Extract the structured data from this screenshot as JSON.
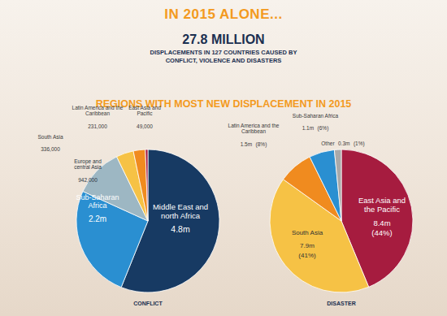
{
  "header": {
    "title": "IN 2015 ALONE...",
    "headline": "27.8 MILLION",
    "subtitle": "DISPLACEMENTS IN 127 COUNTRIES CAUSED BY CONFLICT, VIOLENCE AND DISASTERS",
    "section_title": "REGIONS WITH MOST NEW DISPLACEMENT IN 2015"
  },
  "chart_data": [
    {
      "type": "pie",
      "title": "CONFLICT",
      "categories": [
        "Middle East and north Africa",
        "Sub-Saharan Africa",
        "Europe and central Asia",
        "South Asia",
        "Latin America and the Caribbean",
        "East Asia and Pacific"
      ],
      "values": [
        4800000,
        2200000,
        942000,
        336000,
        231000,
        49000
      ],
      "value_labels": [
        "4.8m",
        "2.2m",
        "942,000",
        "336,000",
        "231,000",
        "49,000"
      ],
      "colors": [
        "#173a63",
        "#2a8fd1",
        "#9db7c3",
        "#f6c245",
        "#f08b1f",
        "#a61c3f"
      ],
      "data_labels": true
    },
    {
      "type": "pie",
      "title": "DISASTER",
      "categories": [
        "East Asia and the Pacific",
        "South Asia",
        "Latin America and the Caribbean",
        "Sub-Saharan Africa",
        "Other"
      ],
      "values": [
        8400000,
        7900000,
        1500000,
        1100000,
        300000
      ],
      "value_labels": [
        "8.4m",
        "7.9m",
        "1.5m",
        "1.1m",
        "0.3m"
      ],
      "percents": [
        44,
        41,
        8,
        6,
        1
      ],
      "percent_labels": [
        "(44%)",
        "(41%)",
        "(8%)",
        "(6%)",
        "(1%)"
      ],
      "colors": [
        "#a61c3f",
        "#f6c245",
        "#f08b1f",
        "#2a8fd1",
        "#a9a9a9"
      ],
      "data_labels": true
    }
  ]
}
